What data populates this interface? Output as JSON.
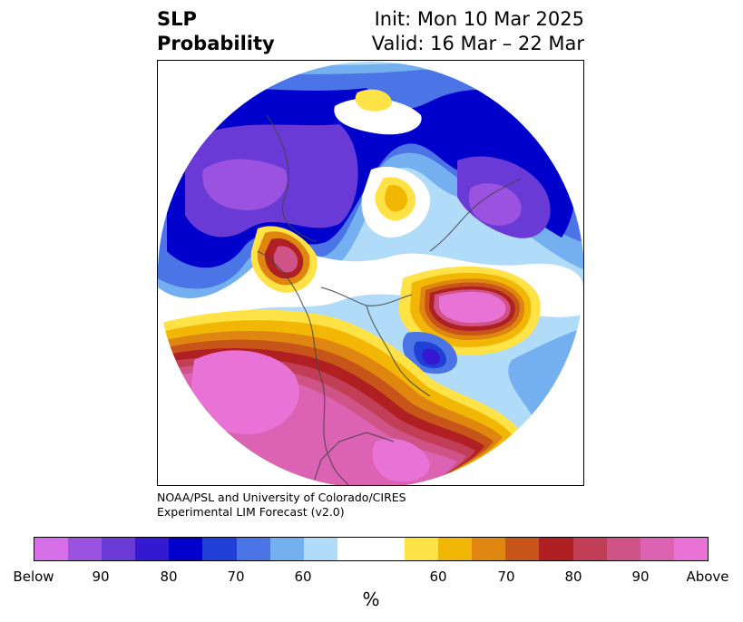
{
  "title": {
    "variable": "SLP",
    "product": "Probability"
  },
  "dates": {
    "init": "Init: Mon 10 Mar 2025",
    "valid": "Valid: 16 Mar – 22 Mar"
  },
  "credit": {
    "line1": "NOAA/PSL and University of Colorado/CIRES",
    "line2": "Experimental LIM Forecast (v2.0)"
  },
  "colorbar": {
    "colors": [
      "#d770e8",
      "#9b52e0",
      "#6a3ad6",
      "#3519d2",
      "#0000cc",
      "#1f3fd6",
      "#4b74e6",
      "#74aff0",
      "#b0dcfa",
      "#ffffff",
      "#ffffff",
      "#ffe245",
      "#f2b705",
      "#df8610",
      "#c75418",
      "#b02023",
      "#c23d56",
      "#cf5387",
      "#dc62b3",
      "#e872d6"
    ],
    "tick_labels": [
      "Below",
      "90",
      "80",
      "70",
      "60",
      "60",
      "70",
      "80",
      "90",
      "Above"
    ],
    "unit": "%"
  }
}
